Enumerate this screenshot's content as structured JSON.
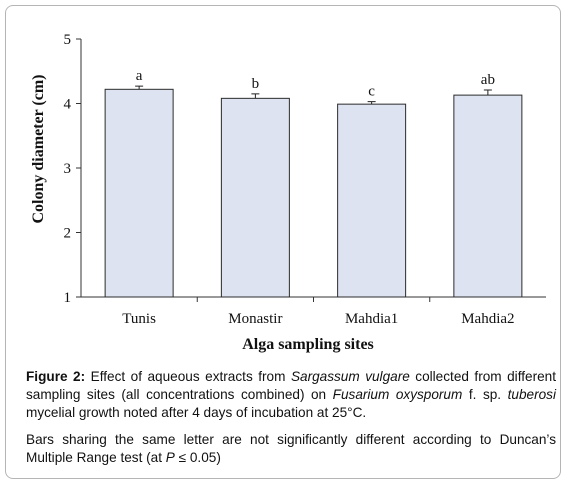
{
  "chart_data": {
    "type": "bar",
    "categories": [
      "Tunis",
      "Monastir",
      "Mahdia1",
      "Mahdia2"
    ],
    "values": [
      4.22,
      4.08,
      3.99,
      4.13
    ],
    "errors": [
      0.05,
      0.07,
      0.04,
      0.08
    ],
    "letters": [
      "a",
      "b",
      "c",
      "ab"
    ],
    "xlabel": "Alga sampling sites",
    "ylabel": "Colony diameter (cm)",
    "ylim": [
      1,
      5
    ],
    "yticks": [
      "1",
      "2",
      "3",
      "4",
      "5"
    ],
    "bar_color": "#dde3f1",
    "bar_stroke": "#2b2b2b",
    "grid": false,
    "legend": "none"
  },
  "caption": {
    "figure_label": "Figure 2:",
    "text_1": " Effect of aqueous extracts from ",
    "species_1": "Sargassum vulgare",
    "text_2": " collected from different sampling sites (all concentrations combined) on ",
    "species_2": "Fusarium oxysporum",
    "text_3": " f. sp. ",
    "species_3": "tuberosi",
    "text_4": " mycelial growth noted after 4 days of incubation at 25°C.",
    "note_1": "Bars sharing the same letter are not significantly different according to Duncan’s Multiple Range test (at ",
    "note_p": "P",
    "note_2": " ≤ 0.05)"
  }
}
